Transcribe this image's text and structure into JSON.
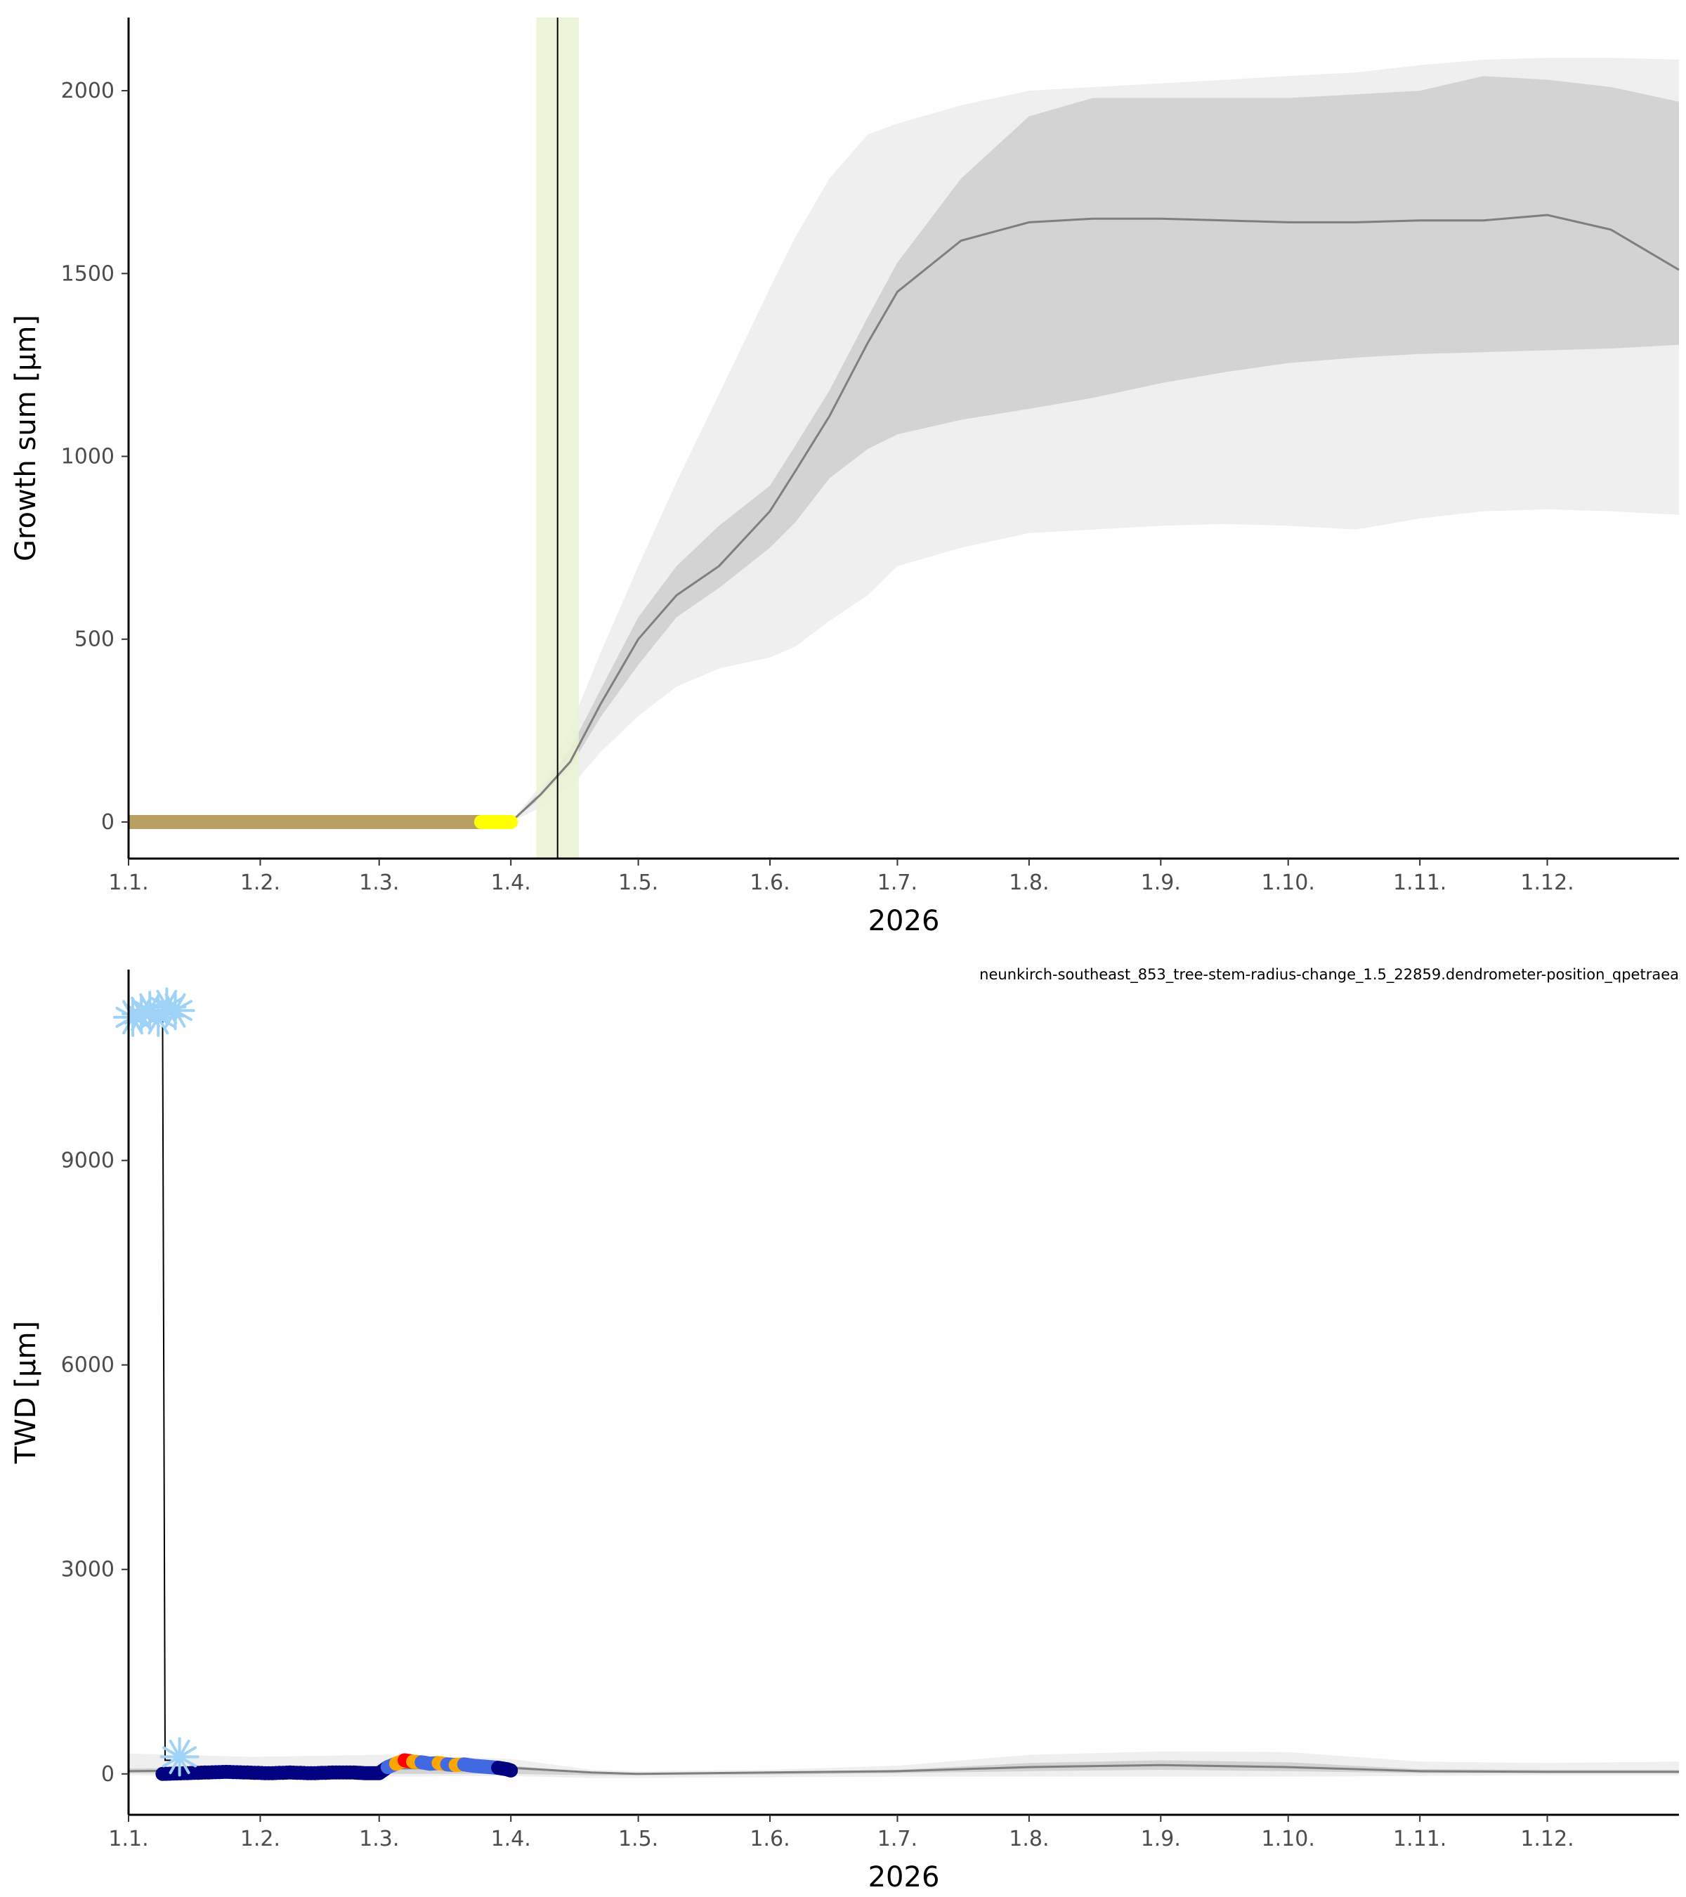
{
  "colors": {
    "band_outer": "#efefef",
    "band_inner": "#d3d3d3",
    "median_line": "#7f7f7f",
    "observed_growth": "#b8a063",
    "observed_recent": "#ffff00",
    "onset_band": "#e9f3d2",
    "onset_line": "#000000",
    "frost_marker": "#9fd2f7",
    "twd_navy": "#000080",
    "twd_blue": "#4169e1",
    "twd_orange": "#ffa500",
    "twd_red": "#ff0000"
  },
  "chart_data": [
    {
      "type": "area",
      "xlabel": "2026",
      "ylabel": "Growth sum [µm]",
      "xlim": [
        1,
        366
      ],
      "ylim": [
        -100,
        2200
      ],
      "x_ticks": [
        1,
        32,
        60,
        91,
        121,
        152,
        182,
        213,
        244,
        274,
        305,
        335
      ],
      "x_tick_labels": [
        "1.1.",
        "1.2.",
        "1.3.",
        "1.4.",
        "1.5.",
        "1.6.",
        "1.7.",
        "1.8.",
        "1.9.",
        "1.10.",
        "1.11.",
        "1.12."
      ],
      "y_ticks": [
        0,
        500,
        1000,
        1500,
        2000
      ],
      "y_tick_labels": [
        "0",
        "500",
        "1000",
        "1500",
        "2000"
      ],
      "grid": false,
      "onset": {
        "day": 102,
        "band_start": 97,
        "band_end": 107
      },
      "bands": {
        "x": [
          91,
          98,
          105,
          112,
          121,
          130,
          140,
          152,
          158,
          166,
          175,
          182,
          197,
          213,
          228,
          244,
          259,
          274,
          290,
          305,
          320,
          335,
          350,
          366
        ],
        "outer_low": [
          0,
          40,
          95,
          190,
          290,
          370,
          420,
          450,
          480,
          550,
          620,
          700,
          750,
          790,
          800,
          810,
          815,
          810,
          800,
          830,
          850,
          855,
          850,
          840
        ],
        "outer_high": [
          0,
          100,
          260,
          460,
          700,
          930,
          1170,
          1460,
          1600,
          1760,
          1880,
          1910,
          1960,
          2000,
          2010,
          2020,
          2030,
          2040,
          2050,
          2070,
          2085,
          2090,
          2090,
          2085
        ],
        "inner_low": [
          0,
          65,
          150,
          285,
          430,
          560,
          640,
          750,
          820,
          940,
          1020,
          1060,
          1100,
          1130,
          1160,
          1200,
          1230,
          1255,
          1270,
          1280,
          1285,
          1290,
          1295,
          1305
        ],
        "inner_high": [
          0,
          85,
          200,
          360,
          560,
          700,
          810,
          920,
          1030,
          1180,
          1380,
          1530,
          1760,
          1930,
          1980,
          1980,
          1980,
          1980,
          1990,
          2000,
          2040,
          2030,
          2010,
          1970
        ],
        "median": [
          0,
          75,
          165,
          320,
          500,
          620,
          700,
          850,
          960,
          1110,
          1310,
          1450,
          1590,
          1640,
          1650,
          1650,
          1645,
          1640,
          1640,
          1645,
          1645,
          1660,
          1620,
          1510
        ]
      },
      "observed": {
        "x_start": 1,
        "x_end": 84,
        "value": 0,
        "recent_start": 84,
        "recent_end": 91
      }
    },
    {
      "type": "line",
      "xlabel": "2026",
      "ylabel": "TWD [µm]",
      "annotation": "neunkirch-southeast_853_tree-stem-radius-change_1.5_22859.dendrometer-position_qpetraea",
      "xlim": [
        1,
        366
      ],
      "ylim": [
        -600,
        11800
      ],
      "x_ticks": [
        1,
        32,
        60,
        91,
        121,
        152,
        182,
        213,
        244,
        274,
        305,
        335
      ],
      "x_tick_labels": [
        "1.1.",
        "1.2.",
        "1.3.",
        "1.4.",
        "1.5.",
        "1.6.",
        "1.7.",
        "1.8.",
        "1.9.",
        "1.10.",
        "1.11.",
        "1.12."
      ],
      "y_ticks": [
        0,
        3000,
        6000,
        9000
      ],
      "y_tick_labels": [
        "0",
        "3000",
        "6000",
        "9000"
      ],
      "grid": false,
      "bands": {
        "x": [
          1,
          30,
          60,
          91,
          110,
          121,
          152,
          182,
          213,
          244,
          274,
          305,
          335,
          366
        ],
        "outer_low": [
          -20,
          -40,
          -40,
          -30,
          -60,
          -60,
          -50,
          -40,
          -40,
          -40,
          -40,
          -30,
          -20,
          -20
        ],
        "outer_high": [
          300,
          250,
          280,
          220,
          60,
          40,
          60,
          120,
          280,
          330,
          320,
          180,
          160,
          180
        ],
        "inner_low": [
          10,
          0,
          0,
          0,
          -20,
          -20,
          -10,
          10,
          40,
          60,
          40,
          10,
          10,
          10
        ],
        "inner_high": [
          80,
          90,
          110,
          120,
          20,
          10,
          30,
          60,
          160,
          200,
          170,
          70,
          60,
          60
        ],
        "median": [
          40,
          60,
          80,
          90,
          20,
          0,
          20,
          40,
          100,
          130,
          100,
          40,
          30,
          30
        ]
      },
      "frost_spike": {
        "x": [
          1,
          7,
          9,
          9.6,
          11
        ],
        "y": [
          11200,
          11200,
          11200,
          200,
          200
        ]
      },
      "frost_markers": {
        "upper_x": [
          2,
          4,
          6,
          8,
          10,
          12
        ],
        "upper_y": [
          11100,
          11150,
          11200,
          11100,
          11250,
          11200
        ],
        "lower_x": [
          13
        ],
        "lower_y": [
          250
        ]
      },
      "observed": {
        "x": [
          9,
          14,
          19,
          24,
          29,
          34,
          39,
          44,
          49,
          54,
          57,
          60,
          62,
          64,
          66,
          68,
          70,
          72,
          74,
          76,
          78,
          80,
          82,
          84,
          86,
          88,
          90,
          91
        ],
        "y": [
          0,
          10,
          20,
          30,
          20,
          10,
          20,
          10,
          20,
          20,
          10,
          10,
          100,
          150,
          200,
          180,
          170,
          150,
          160,
          140,
          130,
          140,
          120,
          110,
          100,
          90,
          70,
          50
        ],
        "color_keys": [
          "navy",
          "navy",
          "navy",
          "navy",
          "navy",
          "navy",
          "navy",
          "navy",
          "navy",
          "navy",
          "navy",
          "navy",
          "blue",
          "orange",
          "red",
          "orange",
          "blue",
          "blue",
          "orange",
          "blue",
          "orange",
          "blue",
          "blue",
          "blue",
          "blue",
          "navy",
          "navy",
          "navy"
        ]
      }
    }
  ]
}
